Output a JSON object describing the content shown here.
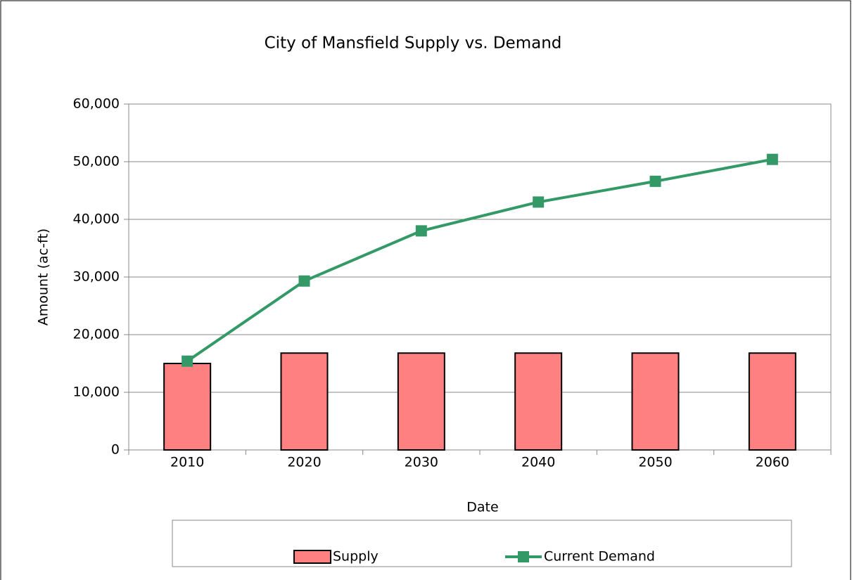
{
  "chart_data": {
    "type": "bar",
    "title": "City of Mansfield Supply vs. Demand",
    "x_label": "Date",
    "y_label": "Amount (ac-ft)",
    "categories": [
      "2010",
      "2020",
      "2030",
      "2040",
      "2050",
      "2060"
    ],
    "series": [
      {
        "name": "Supply",
        "type": "bar",
        "color": "#ff8080",
        "values": [
          15000,
          16800,
          16800,
          16800,
          16800,
          16800
        ]
      },
      {
        "name": "Current Demand",
        "type": "line",
        "color": "#339966",
        "values": [
          15400,
          29300,
          38000,
          43000,
          46600,
          50400
        ]
      }
    ],
    "ylim": [
      0,
      60000
    ],
    "yticks": [
      0,
      {
        "value": 10000,
        "label": "10,000"
      },
      {
        "value": 20000,
        "label": "20,000"
      },
      {
        "value": 30000,
        "label": "30,000"
      },
      {
        "value": 40000,
        "label": "40,000"
      },
      {
        "value": 50000,
        "label": "50,000"
      },
      {
        "value": 60000,
        "label": "60,000"
      }
    ],
    "grid": true,
    "legend": "bottom"
  }
}
